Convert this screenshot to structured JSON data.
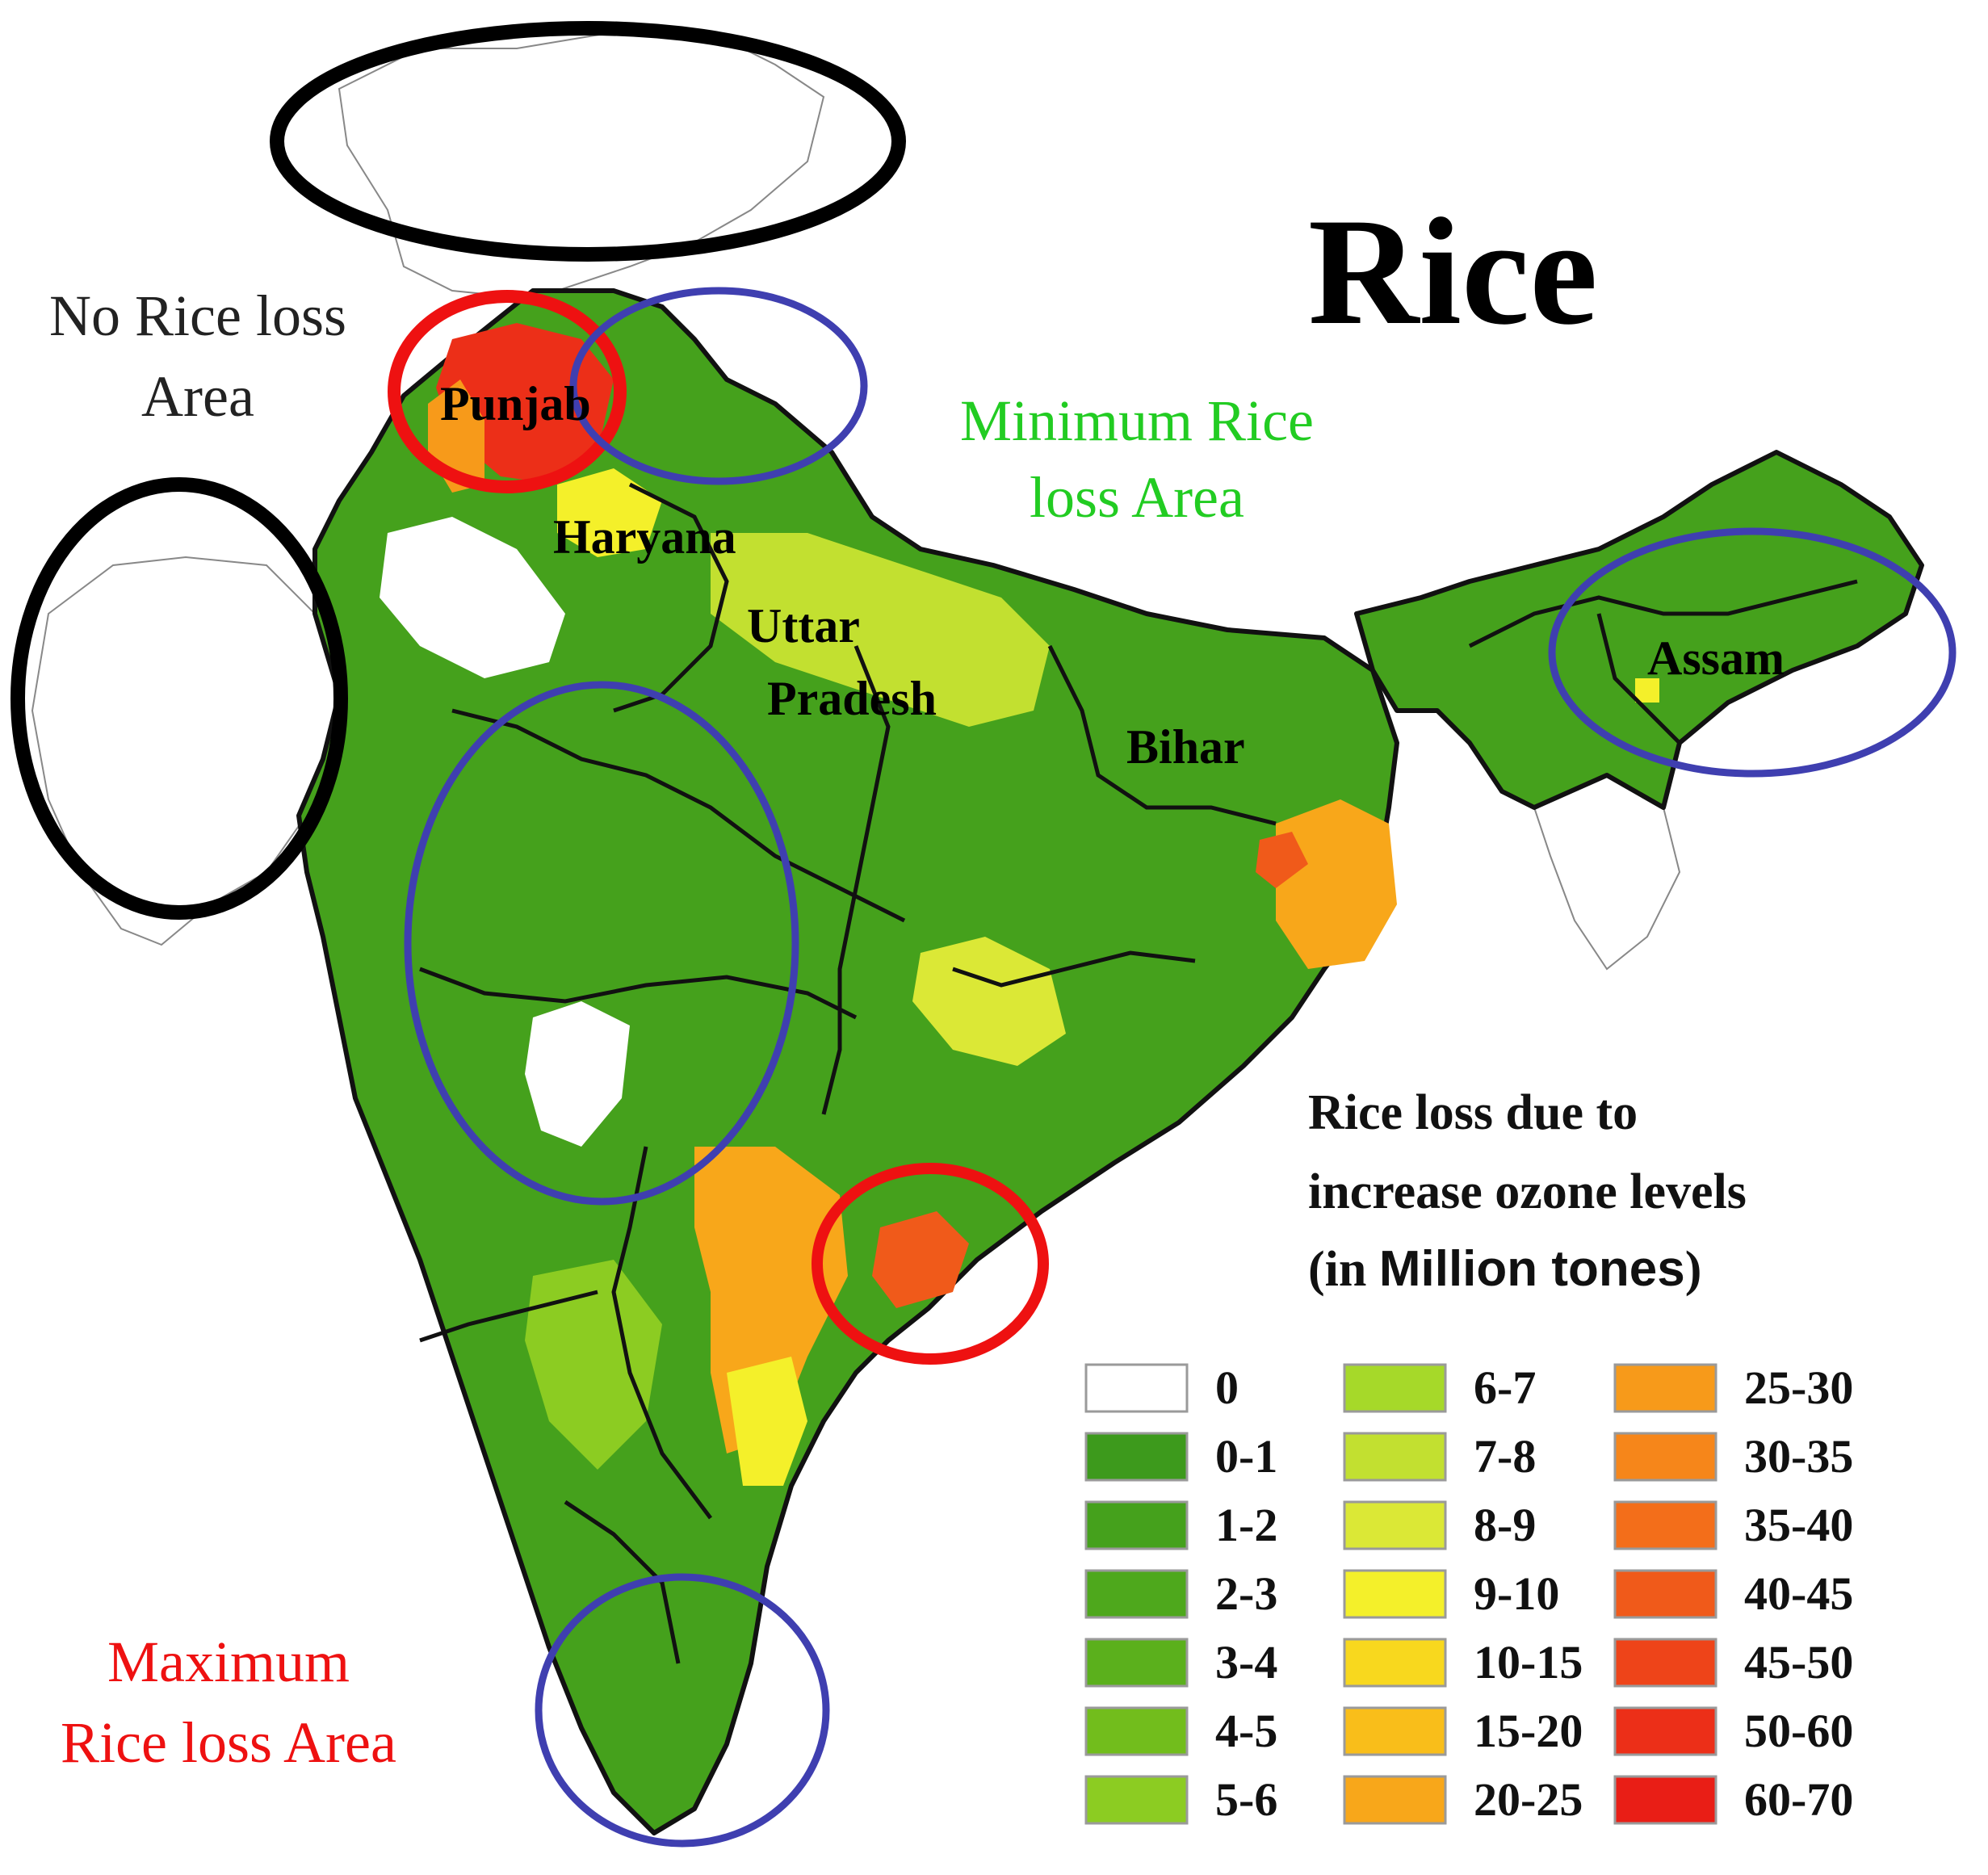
{
  "title": "Rice",
  "annotations": {
    "no_loss": [
      "No Rice loss",
      "Area"
    ],
    "minimum": [
      "Minimum Rice",
      "loss Area"
    ],
    "maximum": [
      "Maximum",
      "Rice loss Area"
    ]
  },
  "states": {
    "punjab": "Punjab",
    "haryana": "Haryana",
    "uttar_pradesh": [
      "Uttar",
      "Pradesh"
    ],
    "bihar": "Bihar",
    "assam": "Assam"
  },
  "legend": {
    "title_lines": [
      "Rice loss due to",
      "increase ozone levels"
    ],
    "title_line3_prefix": "(in ",
    "title_line3_unit": "Million tones",
    "title_line3_suffix": ")",
    "items": [
      {
        "label": "0",
        "color": "#ffffff"
      },
      {
        "label": "0-1",
        "color": "#3d9a1c"
      },
      {
        "label": "1-2",
        "color": "#45a11c"
      },
      {
        "label": "2-3",
        "color": "#4ea81c"
      },
      {
        "label": "3-4",
        "color": "#5bb01c"
      },
      {
        "label": "4-5",
        "color": "#72bd1c"
      },
      {
        "label": "5-6",
        "color": "#8ccc22"
      },
      {
        "label": "6-7",
        "color": "#a6d929"
      },
      {
        "label": "7-8",
        "color": "#c2e030"
      },
      {
        "label": "8-9",
        "color": "#dbe836"
      },
      {
        "label": "9-10",
        "color": "#f4f02a"
      },
      {
        "label": "10-15",
        "color": "#f8d81e"
      },
      {
        "label": "15-20",
        "color": "#f9be1a"
      },
      {
        "label": "20-25",
        "color": "#f8a71a"
      },
      {
        "label": "25-30",
        "color": "#f79a1a"
      },
      {
        "label": "30-35",
        "color": "#f6861a"
      },
      {
        "label": "35-40",
        "color": "#f36e1a"
      },
      {
        "label": "40-45",
        "color": "#f05a1a"
      },
      {
        "label": "45-50",
        "color": "#ee4419"
      },
      {
        "label": "50-60",
        "color": "#ec2f18"
      },
      {
        "label": "60-70",
        "color": "#e91e16"
      }
    ]
  },
  "colors": {
    "black_circle": "#000000",
    "red_circle": "#ee1111",
    "blue_circle": "#3f3fb0",
    "minimum_text": "#22cc22",
    "maximum_text": "#ee1111"
  }
}
